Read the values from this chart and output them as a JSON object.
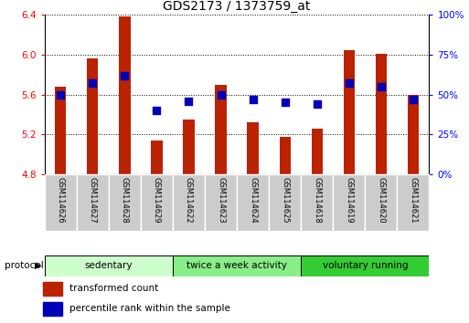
{
  "title": "GDS2173 / 1373759_at",
  "samples": [
    "GSM114626",
    "GSM114627",
    "GSM114628",
    "GSM114629",
    "GSM114622",
    "GSM114623",
    "GSM114624",
    "GSM114625",
    "GSM114618",
    "GSM114619",
    "GSM114620",
    "GSM114621"
  ],
  "transformed_count": [
    5.68,
    5.96,
    6.38,
    5.14,
    5.35,
    5.7,
    5.32,
    5.18,
    5.26,
    6.04,
    6.01,
    5.6
  ],
  "percentile_rank": [
    50,
    57,
    62,
    40,
    46,
    50,
    47,
    45,
    44,
    57,
    55,
    47
  ],
  "bar_bottom": 4.8,
  "ylim_left": [
    4.8,
    6.4
  ],
  "ylim_right": [
    0,
    100
  ],
  "yticks_left": [
    4.8,
    5.2,
    5.6,
    6.0,
    6.4
  ],
  "yticks_right": [
    0,
    25,
    50,
    75,
    100
  ],
  "ytick_labels_right": [
    "0%",
    "25%",
    "50%",
    "75%",
    "100%"
  ],
  "bar_color": "#bb2200",
  "dot_color": "#0000bb",
  "groups": [
    {
      "label": "sedentary",
      "start": 0,
      "end": 4,
      "color": "#ccffcc"
    },
    {
      "label": "twice a week activity",
      "start": 4,
      "end": 8,
      "color": "#88ee88"
    },
    {
      "label": "voluntary running",
      "start": 8,
      "end": 12,
      "color": "#33cc33"
    }
  ],
  "protocol_label": "protocol",
  "legend_items": [
    {
      "label": "transformed count",
      "color": "#bb2200"
    },
    {
      "label": "percentile rank within the sample",
      "color": "#0000bb"
    }
  ],
  "bar_width": 0.35,
  "dot_size": 40,
  "grid_color": "#000000",
  "bg_color": "#ffffff"
}
